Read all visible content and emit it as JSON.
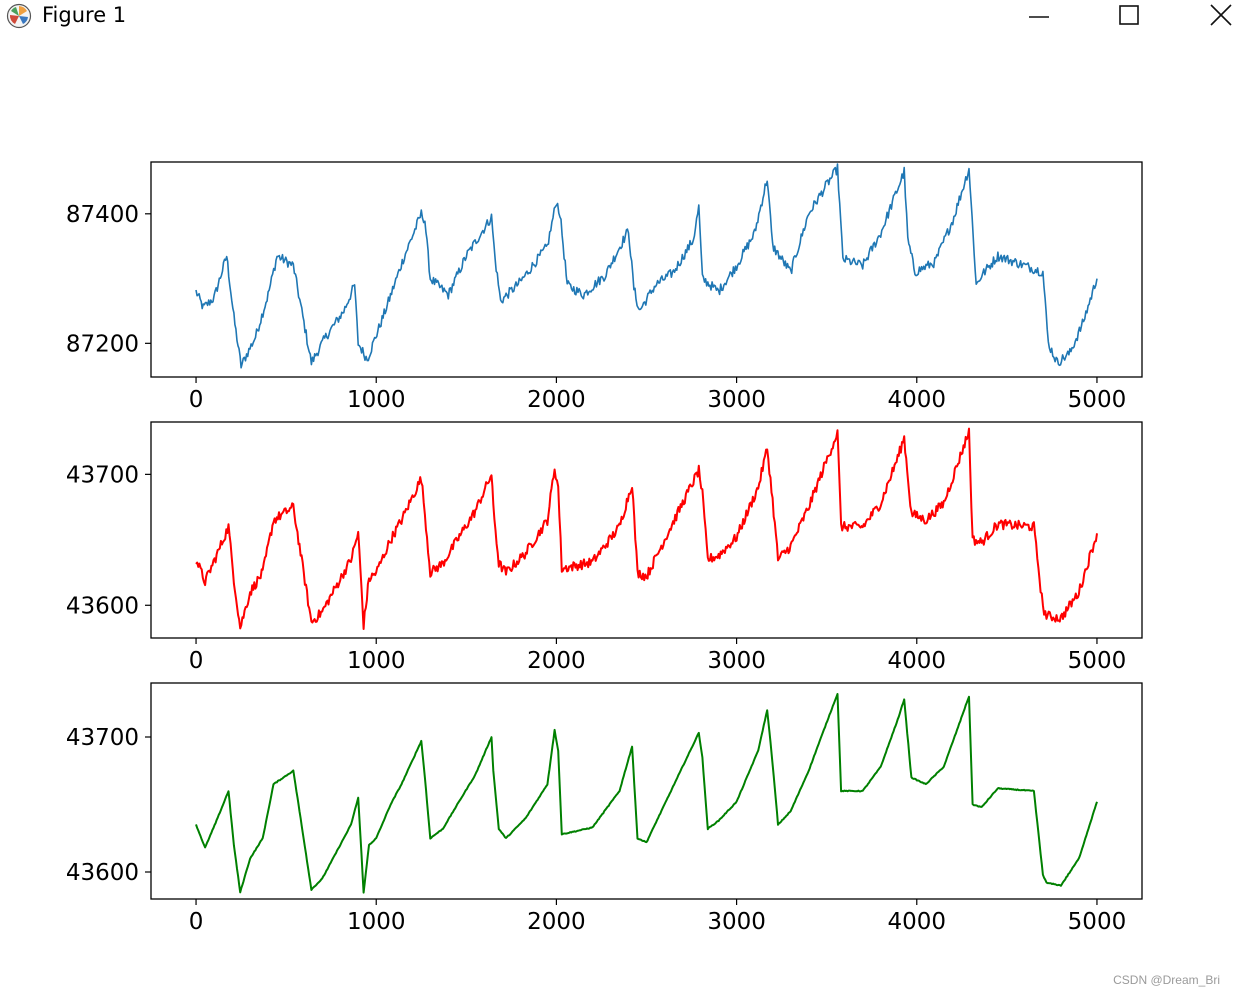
{
  "window": {
    "title": "Figure 1",
    "icons": {
      "app": "matplotlib-figure-icon",
      "minimize": "minimize-icon",
      "maximize": "maximize-icon",
      "close": "close-icon"
    }
  },
  "watermark": "CSDN @Dream_Bri",
  "colors": {
    "series1": "#1f77b4",
    "series2": "#ff0000",
    "series3": "#008000"
  },
  "chart_data": [
    {
      "type": "line",
      "title": "",
      "xlabel": "",
      "ylabel": "",
      "xlim": [
        -250,
        5250
      ],
      "ylim": [
        87148,
        87480
      ],
      "xticks": [
        0,
        1000,
        2000,
        3000,
        4000,
        5000
      ],
      "xtick_labels": [
        "0",
        "1000",
        "2000",
        "3000",
        "4000",
        "5000"
      ],
      "yticks": [
        87200,
        87400
      ],
      "ytick_labels": [
        "87200",
        "87400"
      ],
      "grid": false,
      "series": [
        {
          "color": "#1f77b4",
          "noisy": true,
          "x": [
            0,
            40,
            100,
            170,
            210,
            250,
            330,
            400,
            450,
            540,
            640,
            720,
            820,
            880,
            900,
            950,
            1050,
            1150,
            1250,
            1270,
            1300,
            1400,
            1500,
            1640,
            1660,
            1690,
            1800,
            1950,
            2000,
            2020,
            2060,
            2150,
            2270,
            2400,
            2430,
            2460,
            2550,
            2650,
            2760,
            2790,
            2810,
            2900,
            3000,
            3100,
            3170,
            3200,
            3300,
            3400,
            3500,
            3560,
            3590,
            3700,
            3800,
            3930,
            3950,
            3990,
            4100,
            4200,
            4290,
            4330,
            4360,
            4450,
            4600,
            4700,
            4730,
            4780,
            4850,
            4920,
            5000
          ],
          "y": [
            87280,
            87255,
            87270,
            87335,
            87240,
            87165,
            87210,
            87275,
            87335,
            87320,
            87170,
            87210,
            87250,
            87290,
            87200,
            87175,
            87250,
            87330,
            87400,
            87390,
            87300,
            87275,
            87335,
            87395,
            87330,
            87265,
            87295,
            87350,
            87420,
            87400,
            87290,
            87275,
            87305,
            87375,
            87285,
            87250,
            87290,
            87310,
            87360,
            87410,
            87300,
            87280,
            87320,
            87370,
            87455,
            87350,
            87310,
            87400,
            87445,
            87470,
            87330,
            87320,
            87370,
            87465,
            87360,
            87310,
            87325,
            87390,
            87470,
            87290,
            87305,
            87335,
            87320,
            87310,
            87200,
            87170,
            87185,
            87230,
            87300
          ]
        }
      ]
    },
    {
      "type": "line",
      "title": "",
      "xlabel": "",
      "ylabel": "",
      "xlim": [
        -250,
        5250
      ],
      "ylim": [
        43575,
        43740
      ],
      "xticks": [
        0,
        1000,
        2000,
        3000,
        4000,
        5000
      ],
      "xtick_labels": [
        "0",
        "1000",
        "2000",
        "3000",
        "4000",
        "5000"
      ],
      "yticks": [
        43600,
        43700
      ],
      "ytick_labels": [
        "43600",
        "43700"
      ],
      "grid": false,
      "series": [
        {
          "color": "#ff0000",
          "noisy": true,
          "x": [
            0,
            50,
            120,
            180,
            210,
            245,
            300,
            370,
            430,
            540,
            580,
            640,
            700,
            800,
            860,
            900,
            930,
            960,
            1000,
            1080,
            1140,
            1250,
            1270,
            1300,
            1370,
            1450,
            1550,
            1640,
            1650,
            1680,
            1720,
            1830,
            1950,
            1990,
            2010,
            2030,
            2100,
            2200,
            2350,
            2420,
            2450,
            2500,
            2600,
            2790,
            2810,
            2840,
            2900,
            3000,
            3120,
            3170,
            3200,
            3230,
            3300,
            3400,
            3540,
            3560,
            3580,
            3700,
            3800,
            3900,
            3930,
            3970,
            4050,
            4150,
            4290,
            4310,
            4360,
            4450,
            4650,
            4700,
            4720,
            4800,
            4900,
            5000
          ],
          "y": [
            43635,
            43618,
            43640,
            43660,
            43620,
            43583,
            43610,
            43625,
            43665,
            43675,
            43640,
            43587,
            43595,
            43620,
            43635,
            43655,
            43585,
            43620,
            43625,
            43650,
            43665,
            43697,
            43670,
            43625,
            43632,
            43650,
            43672,
            43700,
            43675,
            43632,
            43625,
            43640,
            43665,
            43705,
            43690,
            43628,
            43630,
            43633,
            43660,
            43693,
            43625,
            43622,
            43650,
            43703,
            43685,
            43635,
            43638,
            43652,
            43690,
            43720,
            43680,
            43635,
            43645,
            43675,
            43725,
            43732,
            43660,
            43660,
            43678,
            43715,
            43728,
            43670,
            43665,
            43678,
            43733,
            43650,
            43648,
            43662,
            43660,
            43598,
            43592,
            43590,
            43610,
            43655
          ]
        }
      ]
    },
    {
      "type": "line",
      "title": "",
      "xlabel": "",
      "ylabel": "",
      "xlim": [
        -250,
        5250
      ],
      "ylim": [
        43580,
        43740
      ],
      "xticks": [
        0,
        1000,
        2000,
        3000,
        4000,
        5000
      ],
      "xtick_labels": [
        "0",
        "1000",
        "2000",
        "3000",
        "4000",
        "5000"
      ],
      "yticks": [
        43600,
        43700
      ],
      "ytick_labels": [
        "43600",
        "43700"
      ],
      "grid": false,
      "series": [
        {
          "color": "#008000",
          "noisy": false,
          "x": [
            0,
            50,
            120,
            180,
            210,
            245,
            300,
            370,
            430,
            540,
            580,
            640,
            700,
            800,
            860,
            900,
            930,
            960,
            1000,
            1080,
            1140,
            1250,
            1270,
            1300,
            1370,
            1450,
            1550,
            1640,
            1650,
            1680,
            1720,
            1830,
            1950,
            1990,
            2010,
            2030,
            2100,
            2200,
            2350,
            2420,
            2450,
            2500,
            2600,
            2790,
            2810,
            2840,
            2900,
            3000,
            3120,
            3170,
            3200,
            3230,
            3300,
            3400,
            3540,
            3560,
            3580,
            3700,
            3800,
            3900,
            3930,
            3970,
            4050,
            4150,
            4290,
            4310,
            4360,
            4450,
            4650,
            4700,
            4720,
            4800,
            4900,
            5000
          ],
          "y": [
            43635,
            43618,
            43640,
            43660,
            43620,
            43585,
            43610,
            43625,
            43665,
            43675,
            43640,
            43587,
            43595,
            43620,
            43635,
            43655,
            43585,
            43620,
            43625,
            43650,
            43665,
            43697,
            43670,
            43625,
            43632,
            43650,
            43672,
            43700,
            43675,
            43632,
            43625,
            43640,
            43665,
            43705,
            43690,
            43628,
            43630,
            43633,
            43660,
            43693,
            43625,
            43622,
            43650,
            43703,
            43685,
            43632,
            43638,
            43652,
            43690,
            43720,
            43680,
            43635,
            43645,
            43675,
            43725,
            43732,
            43660,
            43660,
            43678,
            43715,
            43728,
            43670,
            43665,
            43678,
            43730,
            43650,
            43648,
            43662,
            43660,
            43598,
            43592,
            43590,
            43610,
            43652
          ]
        }
      ]
    }
  ]
}
